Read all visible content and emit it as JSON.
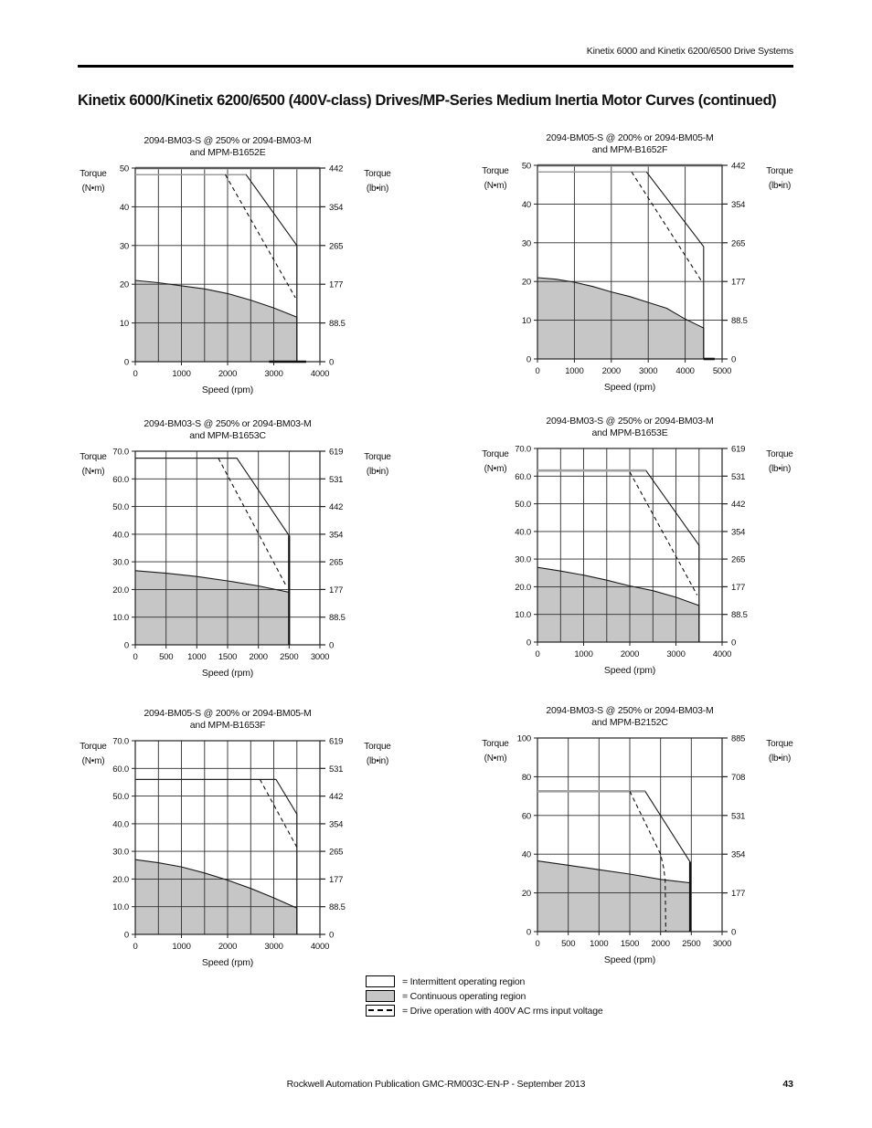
{
  "header": {
    "doc_title": "Kinetix 6000 and Kinetix 6200/6500 Drive Systems"
  },
  "page_title": "Kinetix 6000/Kinetix 6200/6500 (400V-class) Drives/MP-Series Medium Inertia Motor Curves (continued)",
  "footer": {
    "publication": "Rockwell Automation Publication GMC-RM003C-EN-P - September 2013",
    "page_number": "43"
  },
  "legend": {
    "items": [
      {
        "swatch": "intermittent",
        "label": "= Intermittent operating region"
      },
      {
        "swatch": "continuous",
        "label": "= Continuous operating region"
      },
      {
        "swatch": "dashed",
        "label": "= Drive operation with 400V AC rms input voltage"
      }
    ]
  },
  "axis_labels": {
    "left_line1": "Torque",
    "left_line2": "(N•m)",
    "right_line1": "Torque",
    "right_line2": "(lb•in)",
    "x": "Speed (rpm)"
  },
  "colors": {
    "continuous_fill": "#c6c6c6",
    "grid": "#2e2e2e",
    "line": "#1a1a1a",
    "flat_gray": "#a0a0a0"
  },
  "chart_data": [
    {
      "type": "area",
      "title_line1": "2094-BM03-S @ 250% or 2094-BM03-M",
      "title_line2": "and MPM-B1652E",
      "xlabel": "Speed (rpm)",
      "ylabel_left": "Torque (N•m)",
      "ylabel_right": "Torque (lb•in)",
      "x_max": 4000,
      "x_grid_step": 500,
      "x_tick_values": [
        0,
        1000,
        2000,
        3000,
        4000
      ],
      "x_tick_labels": [
        "0",
        "1000",
        "2000",
        "3000",
        "4000"
      ],
      "y_max": 50,
      "y_ticks": [
        {
          "v": 50,
          "left": "50",
          "right": "442"
        },
        {
          "v": 40,
          "left": "40",
          "right": "354"
        },
        {
          "v": 30,
          "left": "30",
          "right": "265"
        },
        {
          "v": 20,
          "left": "20",
          "right": "177"
        },
        {
          "v": 10,
          "left": "10",
          "right": "88.5"
        },
        {
          "v": 0,
          "left": "0",
          "right": "0"
        }
      ],
      "series": {
        "continuous": [
          [
            0,
            21
          ],
          [
            500,
            20.4
          ],
          [
            1000,
            19.6
          ],
          [
            1500,
            18.8
          ],
          [
            2000,
            17.6
          ],
          [
            2500,
            15.9
          ],
          [
            3000,
            13.9
          ],
          [
            3500,
            11.5
          ]
        ],
        "intermittent": [
          [
            0,
            48.3
          ],
          [
            2400,
            48.3
          ],
          [
            3500,
            30
          ],
          [
            3500,
            0
          ]
        ],
        "dashed_400v": [
          [
            1950,
            48.3
          ],
          [
            3470,
            16.5
          ]
        ]
      },
      "style": {
        "flat_color": "#9e9e9e",
        "flat_width": 1.3,
        "top_frame_gray": true,
        "edge_bold": false,
        "baseline_bold": [
          2900,
          3700
        ]
      }
    },
    {
      "type": "area",
      "title_line1": "2094-BM05-S @ 200% or 2094-BM05-M",
      "title_line2": "and MPM-B1652F",
      "xlabel": "Speed (rpm)",
      "ylabel_left": "Torque (N•m)",
      "ylabel_right": "Torque (lb•in)",
      "x_max": 5000,
      "x_grid_step": 1000,
      "x_tick_values": [
        0,
        1000,
        2000,
        3000,
        4000,
        5000
      ],
      "x_tick_labels": [
        "0",
        "1000",
        "2000",
        "3000",
        "4000",
        "5000"
      ],
      "y_max": 50,
      "y_ticks": [
        {
          "v": 50,
          "left": "50",
          "right": "442"
        },
        {
          "v": 40,
          "left": "40",
          "right": "354"
        },
        {
          "v": 30,
          "left": "30",
          "right": "265"
        },
        {
          "v": 20,
          "left": "20",
          "right": "177"
        },
        {
          "v": 10,
          "left": "10",
          "right": "88.5"
        },
        {
          "v": 0,
          "left": "0",
          "right": "0"
        }
      ],
      "series": {
        "continuous": [
          [
            0,
            21
          ],
          [
            500,
            20.6
          ],
          [
            1000,
            19.8
          ],
          [
            1500,
            18.7
          ],
          [
            2000,
            17.3
          ],
          [
            2500,
            16.1
          ],
          [
            3000,
            14.6
          ],
          [
            3500,
            13.1
          ],
          [
            4000,
            10.3
          ],
          [
            4500,
            8
          ]
        ],
        "intermittent": [
          [
            0,
            48.3
          ],
          [
            2950,
            48.3
          ],
          [
            4500,
            29
          ],
          [
            4500,
            0
          ]
        ],
        "dashed_400v": [
          [
            2550,
            48.3
          ],
          [
            4450,
            20
          ]
        ]
      },
      "style": {
        "flat_color": "#9e9e9e",
        "flat_width": 1.3,
        "top_frame_gray": true,
        "edge_bold": false,
        "baseline_bold": [
          4500,
          4800
        ]
      }
    },
    {
      "type": "area",
      "title_line1": "2094-BM03-S @ 250% or 2094-BM03-M",
      "title_line2": "and MPM-B1653C",
      "xlabel": "Speed (rpm)",
      "ylabel_left": "Torque (N•m)",
      "ylabel_right": "Torque (lb•in)",
      "x_max": 3000,
      "x_grid_step": 500,
      "x_tick_values": [
        0,
        500,
        1000,
        1500,
        2000,
        2500,
        3000
      ],
      "x_tick_labels": [
        "0",
        "500",
        "1000",
        "1500",
        "2000",
        "2500",
        "3000"
      ],
      "y_max": 70,
      "y_ticks": [
        {
          "v": 70,
          "left": "70.0",
          "right": "619"
        },
        {
          "v": 60,
          "left": "60.0",
          "right": "531"
        },
        {
          "v": 50,
          "left": "50.0",
          "right": "442"
        },
        {
          "v": 40,
          "left": "40.0",
          "right": "354"
        },
        {
          "v": 30,
          "left": "30.0",
          "right": "265"
        },
        {
          "v": 20,
          "left": "20.0",
          "right": "177"
        },
        {
          "v": 10,
          "left": "10.0",
          "right": "88.5"
        },
        {
          "v": 0,
          "left": "0",
          "right": "0"
        }
      ],
      "series": {
        "continuous": [
          [
            0,
            26.8
          ],
          [
            500,
            25.9
          ],
          [
            1000,
            24.7
          ],
          [
            1500,
            23.1
          ],
          [
            2000,
            21.3
          ],
          [
            2500,
            19
          ]
        ],
        "intermittent": [
          [
            0,
            67.5
          ],
          [
            1650,
            67.5
          ],
          [
            2500,
            39.5
          ],
          [
            2500,
            0
          ]
        ],
        "dashed_400v": [
          [
            1350,
            67.5
          ],
          [
            2460,
            21
          ]
        ]
      },
      "style": {
        "flat_color": "#222222",
        "flat_width": 1.1,
        "top_frame_gray": false,
        "edge_bold": true
      }
    },
    {
      "type": "area",
      "title_line1": "2094-BM03-S @ 250% or 2094-BM03-M",
      "title_line2": "and MPM-B1653E",
      "xlabel": "Speed (rpm)",
      "ylabel_left": "Torque (N•m)",
      "ylabel_right": "Torque (lb•in)",
      "x_max": 4000,
      "x_grid_step": 500,
      "x_tick_values": [
        0,
        1000,
        2000,
        3000,
        4000
      ],
      "x_tick_labels": [
        "0",
        "1000",
        "2000",
        "3000",
        "4000"
      ],
      "y_max": 70,
      "y_ticks": [
        {
          "v": 70,
          "left": "70.0",
          "right": "619"
        },
        {
          "v": 60,
          "left": "60.0",
          "right": "531"
        },
        {
          "v": 50,
          "left": "50.0",
          "right": "442"
        },
        {
          "v": 40,
          "left": "40.0",
          "right": "354"
        },
        {
          "v": 30,
          "left": "30.0",
          "right": "265"
        },
        {
          "v": 20,
          "left": "20.0",
          "right": "177"
        },
        {
          "v": 10,
          "left": "10.0",
          "right": "88.5"
        },
        {
          "v": 0,
          "left": "0",
          "right": "0"
        }
      ],
      "series": {
        "continuous": [
          [
            0,
            27
          ],
          [
            500,
            25.7
          ],
          [
            1000,
            24.2
          ],
          [
            1500,
            22.4
          ],
          [
            2000,
            20.3
          ],
          [
            2500,
            18.6
          ],
          [
            3000,
            16.2
          ],
          [
            3500,
            13.2
          ]
        ],
        "intermittent": [
          [
            0,
            62
          ],
          [
            2350,
            62
          ],
          [
            3500,
            35
          ],
          [
            3500,
            0
          ]
        ],
        "dashed_400v": [
          [
            2000,
            61.5
          ],
          [
            3460,
            17
          ]
        ]
      },
      "style": {
        "flat_color": "#a0a0a0",
        "flat_width": 2.6,
        "top_frame_gray": false,
        "edge_bold": false
      }
    },
    {
      "type": "area",
      "title_line1": "2094-BM05-S @ 200% or 2094-BM05-M",
      "title_line2": "and MPM-B1653F",
      "xlabel": "Speed (rpm)",
      "ylabel_left": "Torque (N•m)",
      "ylabel_right": "Torque (lb•in)",
      "x_max": 4000,
      "x_grid_step": 500,
      "x_tick_values": [
        0,
        1000,
        2000,
        3000,
        4000
      ],
      "x_tick_labels": [
        "0",
        "1000",
        "2000",
        "3000",
        "4000"
      ],
      "y_max": 70,
      "y_ticks": [
        {
          "v": 70,
          "left": "70.0",
          "right": "619"
        },
        {
          "v": 60,
          "left": "60.0",
          "right": "531"
        },
        {
          "v": 50,
          "left": "50.0",
          "right": "442"
        },
        {
          "v": 40,
          "left": "40.0",
          "right": "354"
        },
        {
          "v": 30,
          "left": "30.0",
          "right": "265"
        },
        {
          "v": 20,
          "left": "20.0",
          "right": "177"
        },
        {
          "v": 10,
          "left": "10.0",
          "right": "88.5"
        },
        {
          "v": 0,
          "left": "0",
          "right": "0"
        }
      ],
      "series": {
        "continuous": [
          [
            0,
            27
          ],
          [
            500,
            25.9
          ],
          [
            1000,
            24.4
          ],
          [
            1500,
            22.2
          ],
          [
            2000,
            19.6
          ],
          [
            2500,
            16.6
          ],
          [
            3000,
            13.2
          ],
          [
            3500,
            9.5
          ]
        ],
        "intermittent": [
          [
            0,
            56
          ],
          [
            3050,
            56
          ],
          [
            3500,
            43.5
          ],
          [
            3500,
            0
          ]
        ],
        "dashed_400v": [
          [
            2700,
            56
          ],
          [
            3500,
            31.5
          ]
        ]
      },
      "style": {
        "flat_color": "#222222",
        "flat_width": 1.1,
        "top_frame_gray": false,
        "edge_bold": false
      }
    },
    {
      "type": "area",
      "title_line1": "2094-BM03-S @ 250% or 2094-BM03-M",
      "title_line2": "and MPM-B2152C",
      "xlabel": "Speed (rpm)",
      "ylabel_left": "Torque (N•m)",
      "ylabel_right": "Torque (lb•in)",
      "x_max": 3000,
      "x_grid_step": 500,
      "x_tick_values": [
        0,
        500,
        1000,
        1500,
        2000,
        2500,
        3000
      ],
      "x_tick_labels": [
        "0",
        "500",
        "1000",
        "1500",
        "2000",
        "2500",
        "3000"
      ],
      "y_max": 100,
      "y_ticks": [
        {
          "v": 100,
          "left": "100",
          "right": "885"
        },
        {
          "v": 80,
          "left": "80",
          "right": "708"
        },
        {
          "v": 60,
          "left": "60",
          "right": "531"
        },
        {
          "v": 40,
          "left": "40",
          "right": "354"
        },
        {
          "v": 20,
          "left": "20",
          "right": "177"
        },
        {
          "v": 0,
          "left": "0",
          "right": "0"
        }
      ],
      "series": {
        "continuous": [
          [
            0,
            36.5
          ],
          [
            500,
            34.3
          ],
          [
            1000,
            32
          ],
          [
            1500,
            29.7
          ],
          [
            2000,
            27
          ],
          [
            2480,
            25.2
          ]
        ],
        "intermittent": [
          [
            0,
            72.5
          ],
          [
            1750,
            72.5
          ],
          [
            2480,
            36
          ],
          [
            2480,
            0
          ]
        ],
        "dashed_400v": [
          [
            1500,
            72.5
          ],
          [
            2000,
            40
          ],
          [
            2050,
            33
          ],
          [
            2075,
            27
          ],
          [
            2085,
            0
          ]
        ]
      },
      "style": {
        "flat_color": "#a0a0a0",
        "flat_width": 2.6,
        "top_frame_gray": false,
        "edge_bold": true
      }
    }
  ]
}
